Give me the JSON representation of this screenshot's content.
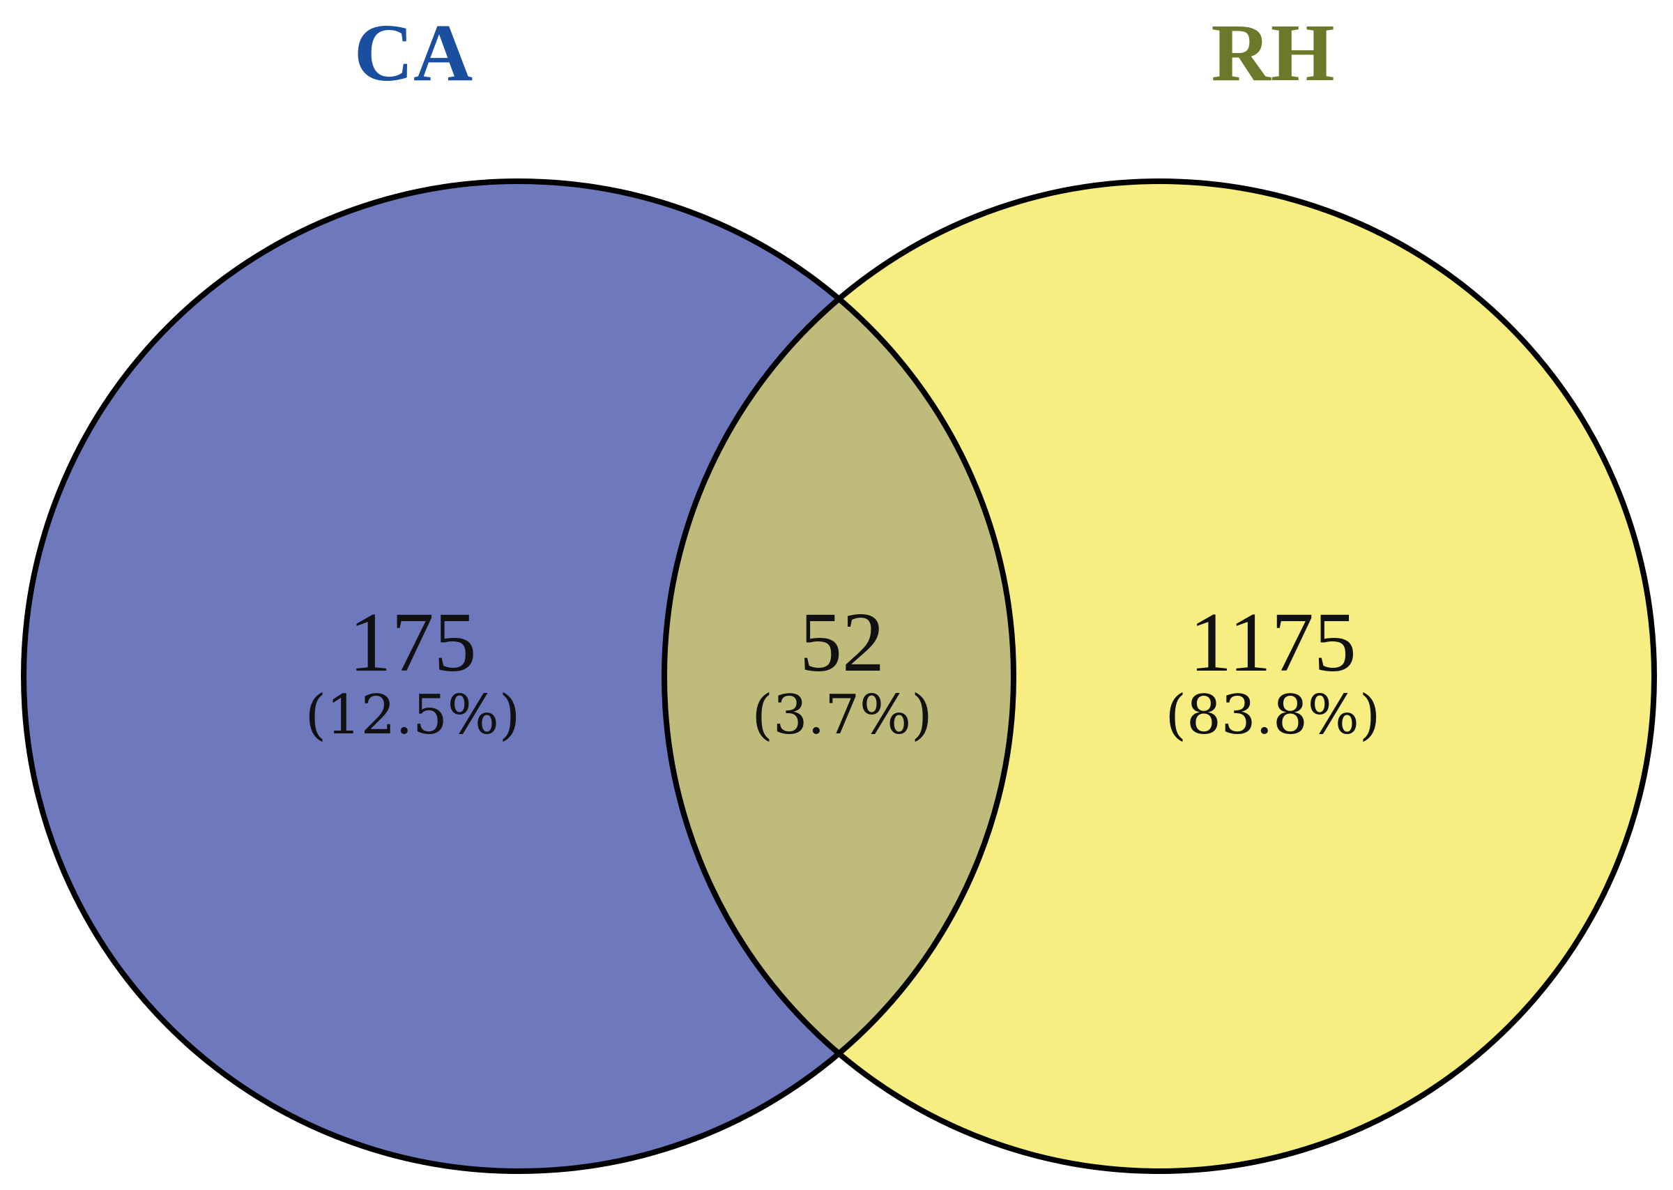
{
  "diagram": {
    "sets": [
      {
        "id": "ca",
        "name": "CA",
        "title_color": "#1a4fa0",
        "fill_color": "#6e78bd",
        "only_count": "175",
        "only_pct": "(12.5%)"
      },
      {
        "id": "rh",
        "name": "RH",
        "title_color": "#6b7a2a",
        "fill_color": "#f6ee80",
        "only_count": "1175",
        "only_pct": "(83.8%)"
      }
    ],
    "intersection": {
      "count": "52",
      "pct": "(3.7%)",
      "fill_color": "#bfbb7a"
    },
    "outline_color": "#000000",
    "text_color": "#111111"
  }
}
